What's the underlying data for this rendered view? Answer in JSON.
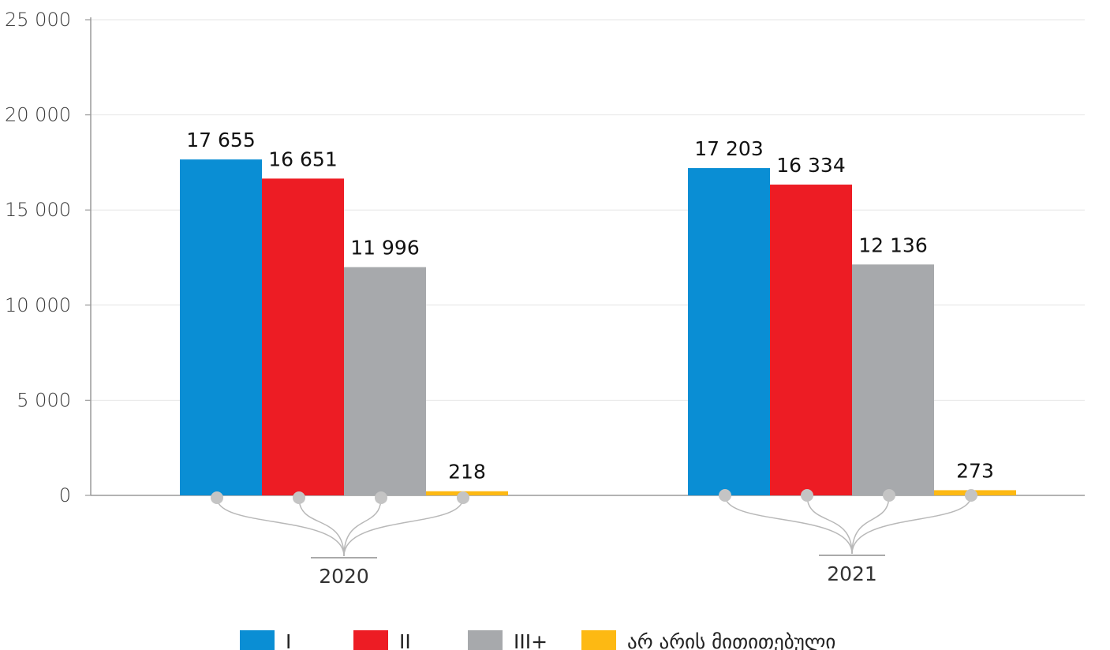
{
  "chart_data": {
    "type": "bar",
    "categories": [
      "2020",
      "2021"
    ],
    "series": [
      {
        "name": "I",
        "color": "#0a8ed4",
        "values": [
          17655,
          17203
        ],
        "labels": [
          "17 655",
          "17 203"
        ]
      },
      {
        "name": "II",
        "color": "#ed1c24",
        "values": [
          16651,
          16334
        ],
        "labels": [
          "16 651",
          "16 334"
        ]
      },
      {
        "name": "III+",
        "color": "#a7a9ac",
        "values": [
          11996,
          12136
        ],
        "labels": [
          "11 996",
          "12 136"
        ]
      },
      {
        "name": "არ არის მითითებული",
        "color": "#fdb913",
        "values": [
          218,
          273
        ],
        "labels": [
          "218",
          "273"
        ]
      }
    ],
    "ylim": [
      0,
      25000
    ],
    "yticks": [
      {
        "value": 0,
        "label": "0"
      },
      {
        "value": 5000,
        "label": "5 000"
      },
      {
        "value": 10000,
        "label": "10 000"
      },
      {
        "value": 15000,
        "label": "15 000"
      },
      {
        "value": 20000,
        "label": "20 000"
      },
      {
        "value": 25000,
        "label": "25 000"
      }
    ],
    "grid": true,
    "legend_position": "bottom"
  }
}
